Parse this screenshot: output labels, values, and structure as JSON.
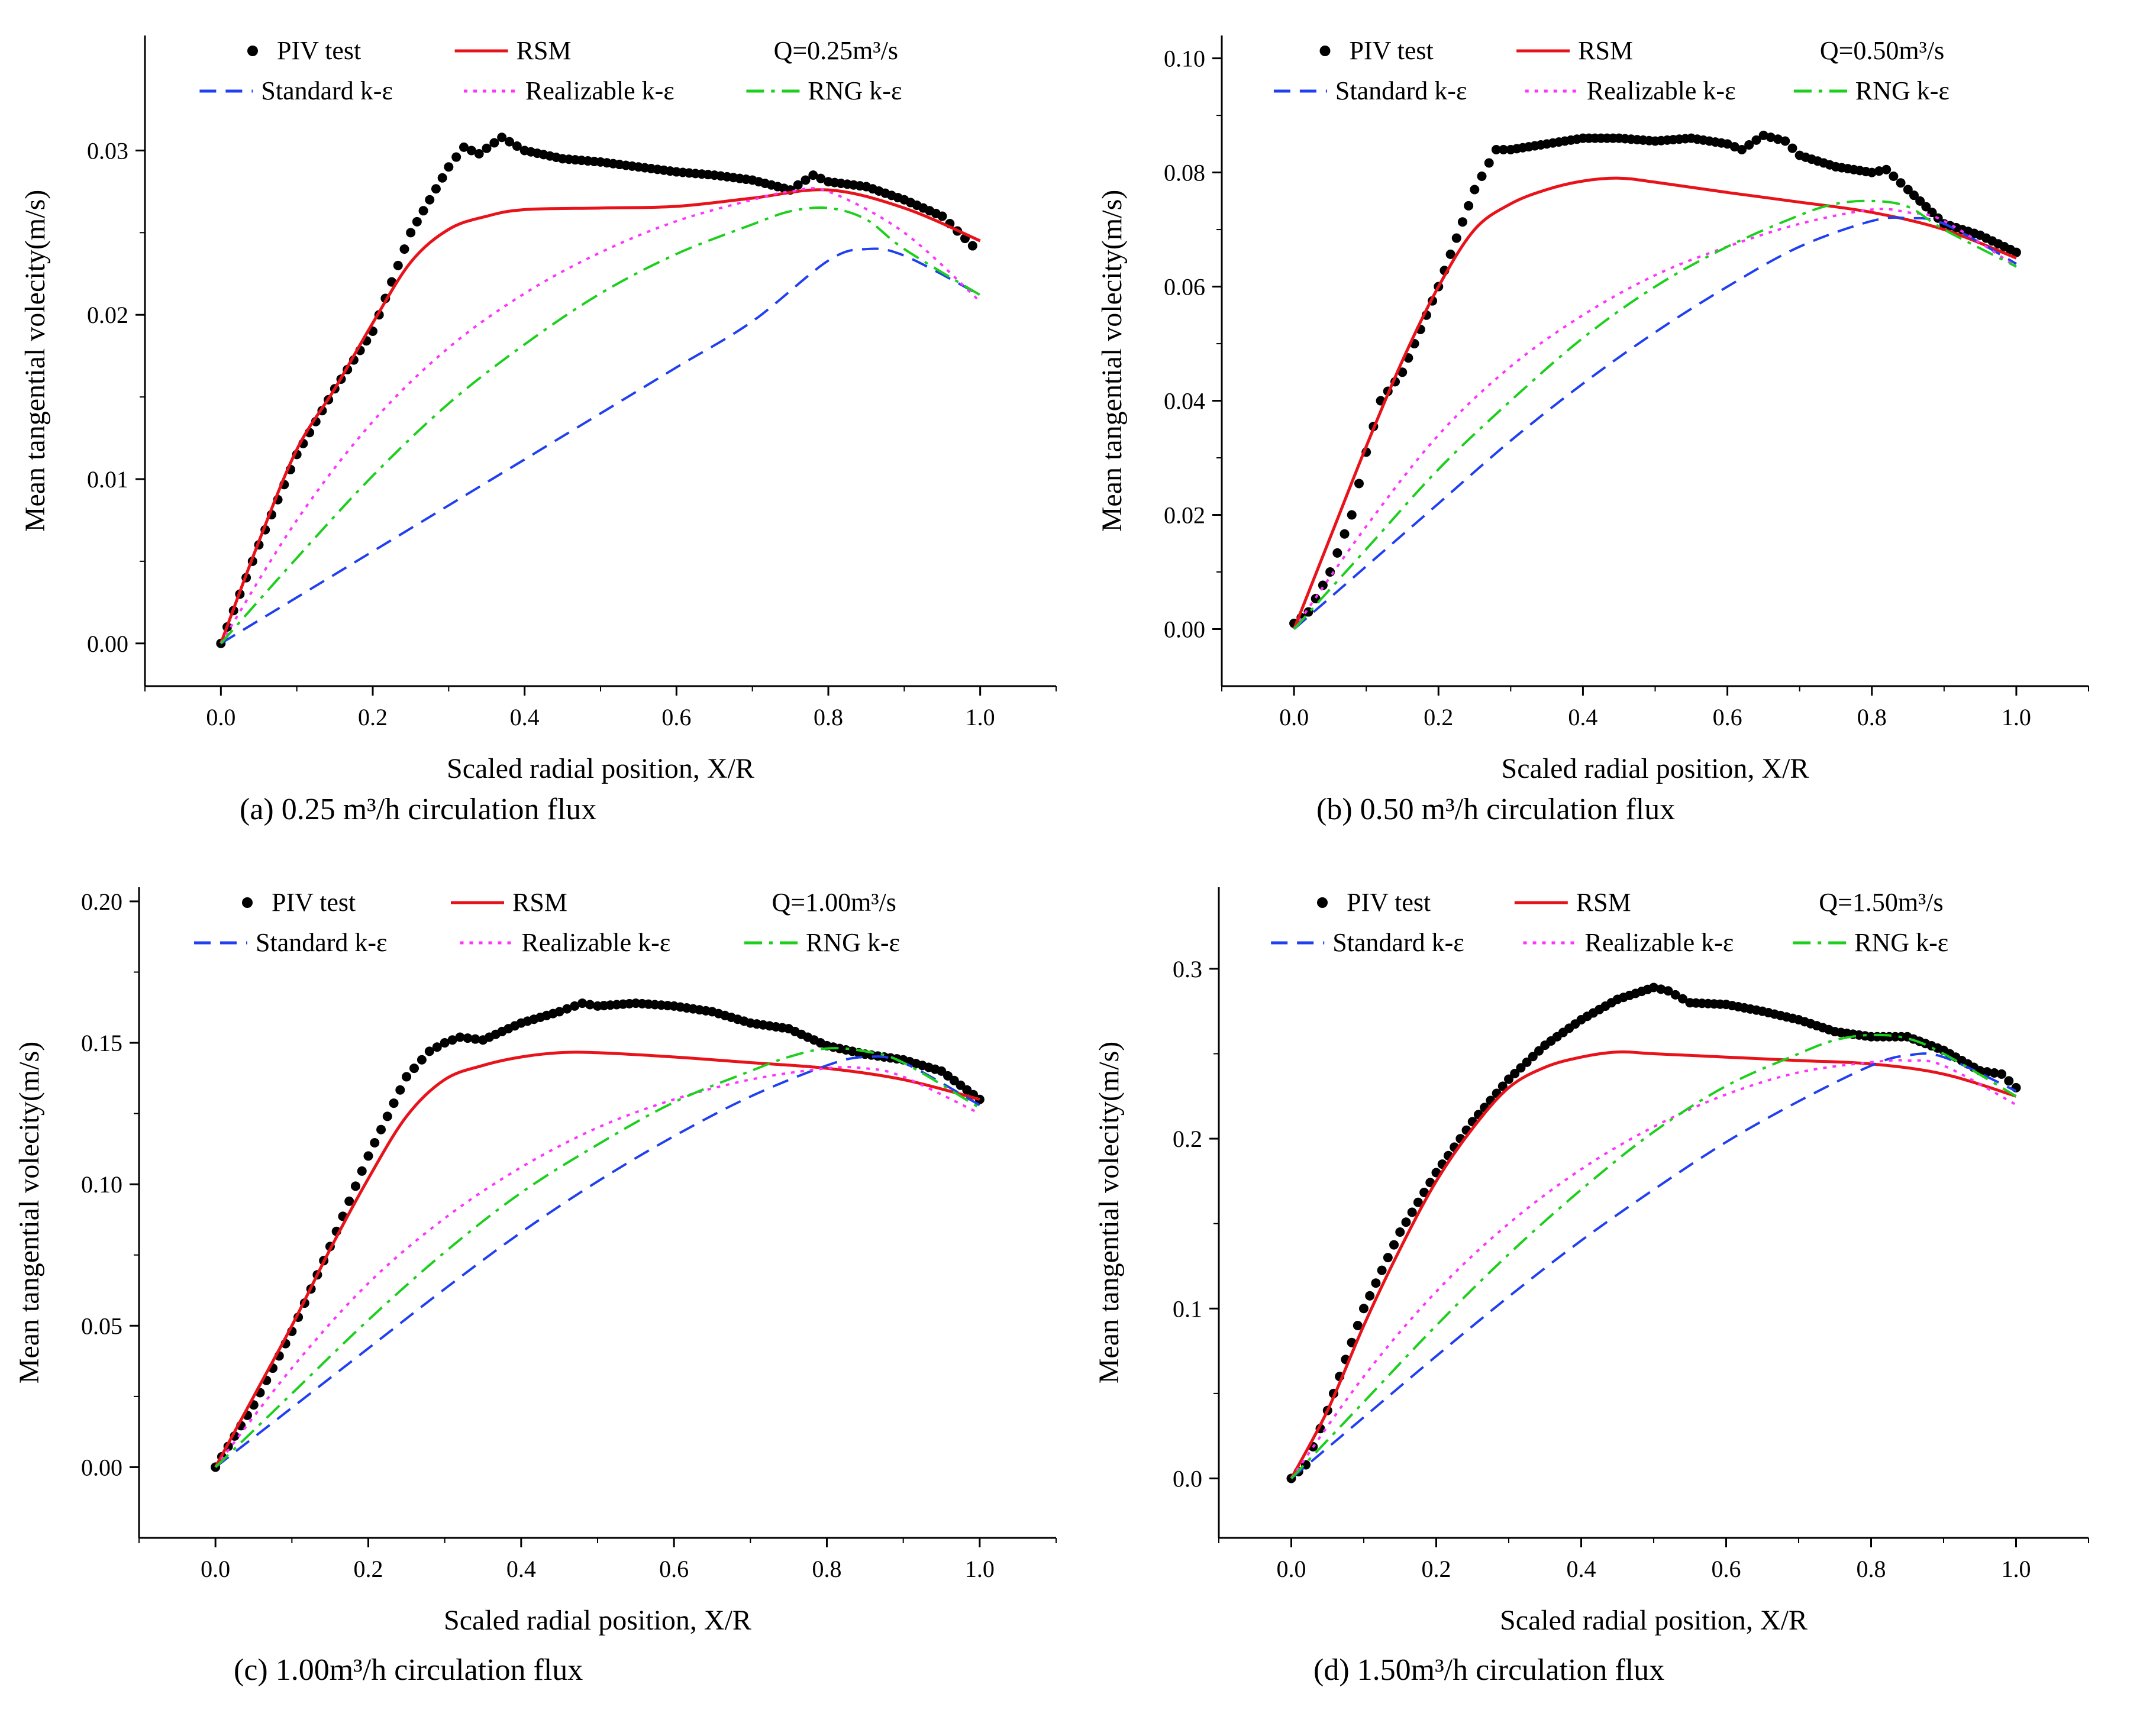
{
  "figure": {
    "ylabel": "Mean tangential volecity(m/s)",
    "xlabel": "Scaled radial position, X/R",
    "colors": {
      "piv": "#000000",
      "rsm": "#e8131a",
      "standard": "#1f3ff0",
      "realizable": "#ff33ff",
      "rng": "#1ccf1c"
    }
  },
  "chart_data": [
    {
      "id": "a",
      "type": "line",
      "caption": "(a) 0.25 m³/h circulation flux",
      "title": "Q=0.25m³/s",
      "xlabel": "Scaled radial position, X/R",
      "ylabel": "Mean tangential volecity(m/s)",
      "xlim": [
        -0.1,
        1.1
      ],
      "ylim": [
        -0.0026,
        0.037
      ],
      "xticks": [
        "0.0",
        "0.2",
        "0.4",
        "0.6",
        "0.8",
        "1.0"
      ],
      "yticks": [
        "0.00",
        "0.01",
        "0.02",
        "0.03"
      ],
      "series": [
        {
          "name": "PIV test",
          "style": "dots",
          "x": [
            0,
            0.05,
            0.1,
            0.15,
            0.2,
            0.25,
            0.3,
            0.32,
            0.34,
            0.37,
            0.4,
            0.45,
            0.5,
            0.55,
            0.6,
            0.65,
            0.7,
            0.75,
            0.78,
            0.8,
            0.85,
            0.9,
            0.95,
            0.99
          ],
          "y": [
            0,
            0.006,
            0.0115,
            0.0155,
            0.019,
            0.025,
            0.029,
            0.0302,
            0.0298,
            0.0308,
            0.03,
            0.0295,
            0.0293,
            0.029,
            0.0287,
            0.0285,
            0.0282,
            0.0276,
            0.0285,
            0.0281,
            0.0278,
            0.027,
            0.026,
            0.0242
          ]
        },
        {
          "name": "RSM",
          "style": "solid",
          "x": [
            0,
            0.05,
            0.1,
            0.15,
            0.2,
            0.25,
            0.3,
            0.35,
            0.4,
            0.5,
            0.6,
            0.7,
            0.8,
            0.9,
            1.0
          ],
          "y": [
            0,
            0.0062,
            0.0118,
            0.0155,
            0.0195,
            0.0232,
            0.0252,
            0.026,
            0.0264,
            0.0265,
            0.0266,
            0.0271,
            0.0276,
            0.0265,
            0.0245
          ]
        },
        {
          "name": "Standard k-ε",
          "style": "dash",
          "x": [
            0,
            0.1,
            0.2,
            0.3,
            0.4,
            0.5,
            0.6,
            0.7,
            0.8,
            0.85,
            0.9,
            1.0
          ],
          "y": [
            0,
            0.0028,
            0.0056,
            0.0084,
            0.0112,
            0.014,
            0.0168,
            0.0196,
            0.0233,
            0.024,
            0.0236,
            0.0212
          ]
        },
        {
          "name": "Realizable k-ε",
          "style": "dot",
          "x": [
            0,
            0.1,
            0.2,
            0.3,
            0.4,
            0.5,
            0.6,
            0.7,
            0.75,
            0.8,
            0.9,
            1.0
          ],
          "y": [
            0,
            0.0075,
            0.0135,
            0.018,
            0.0213,
            0.0238,
            0.0257,
            0.027,
            0.0275,
            0.0275,
            0.025,
            0.0208
          ]
        },
        {
          "name": "RNG k-ε",
          "style": "dashdot",
          "x": [
            0,
            0.1,
            0.2,
            0.3,
            0.4,
            0.5,
            0.6,
            0.7,
            0.75,
            0.8,
            0.85,
            0.9,
            1.0
          ],
          "y": [
            0,
            0.0052,
            0.0102,
            0.0146,
            0.0182,
            0.0213,
            0.0237,
            0.0255,
            0.0263,
            0.0265,
            0.0258,
            0.024,
            0.0212
          ]
        }
      ]
    },
    {
      "id": "b",
      "type": "line",
      "caption": "(b) 0.50 m³/h circulation flux",
      "title": "Q=0.50m³/s",
      "xlabel": "Scaled radial position, X/R",
      "ylabel": "Mean tangential volecity(m/s)",
      "xlim": [
        -0.1,
        1.1
      ],
      "ylim": [
        -0.01,
        0.104
      ],
      "xticks": [
        "0.0",
        "0.2",
        "0.4",
        "0.6",
        "0.8",
        "1.0"
      ],
      "yticks": [
        "0.00",
        "0.02",
        "0.04",
        "0.06",
        "0.08",
        "0.10"
      ],
      "series": [
        {
          "name": "PIV test",
          "style": "dots",
          "x": [
            0,
            0.02,
            0.05,
            0.08,
            0.1,
            0.12,
            0.15,
            0.2,
            0.25,
            0.28,
            0.3,
            0.35,
            0.4,
            0.45,
            0.5,
            0.55,
            0.6,
            0.62,
            0.65,
            0.68,
            0.7,
            0.75,
            0.8,
            0.82,
            0.85,
            0.9,
            0.95,
            1.0
          ],
          "y": [
            0.001,
            0.003,
            0.01,
            0.02,
            0.031,
            0.04,
            0.045,
            0.06,
            0.077,
            0.084,
            0.084,
            0.085,
            0.086,
            0.086,
            0.0855,
            0.086,
            0.085,
            0.084,
            0.0865,
            0.0855,
            0.083,
            0.081,
            0.08,
            0.0805,
            0.077,
            0.071,
            0.069,
            0.066
          ]
        },
        {
          "name": "RSM",
          "style": "solid",
          "x": [
            0,
            0.05,
            0.1,
            0.15,
            0.2,
            0.25,
            0.3,
            0.35,
            0.4,
            0.45,
            0.5,
            0.6,
            0.7,
            0.8,
            0.9,
            1.0
          ],
          "y": [
            0,
            0.016,
            0.032,
            0.047,
            0.06,
            0.07,
            0.0745,
            0.077,
            0.0785,
            0.079,
            0.0783,
            0.0765,
            0.0748,
            0.073,
            0.07,
            0.065
          ]
        },
        {
          "name": "Standard k-ε",
          "style": "dash",
          "x": [
            0,
            0.1,
            0.2,
            0.3,
            0.4,
            0.5,
            0.6,
            0.7,
            0.8,
            0.85,
            0.9,
            1.0
          ],
          "y": [
            0,
            0.011,
            0.022,
            0.033,
            0.043,
            0.052,
            0.06,
            0.067,
            0.0715,
            0.072,
            0.071,
            0.064
          ]
        },
        {
          "name": "Realizable k-ε",
          "style": "dot",
          "x": [
            0,
            0.1,
            0.2,
            0.3,
            0.4,
            0.5,
            0.6,
            0.7,
            0.8,
            0.85,
            0.9,
            1.0
          ],
          "y": [
            0,
            0.018,
            0.034,
            0.046,
            0.055,
            0.062,
            0.067,
            0.071,
            0.0735,
            0.073,
            0.0715,
            0.0635
          ]
        },
        {
          "name": "RNG k-ε",
          "style": "dashdot",
          "x": [
            0,
            0.1,
            0.2,
            0.3,
            0.4,
            0.5,
            0.6,
            0.7,
            0.75,
            0.8,
            0.85,
            0.9,
            1.0
          ],
          "y": [
            0,
            0.014,
            0.028,
            0.04,
            0.051,
            0.06,
            0.067,
            0.0725,
            0.0745,
            0.075,
            0.074,
            0.07,
            0.0635
          ]
        }
      ]
    },
    {
      "id": "c",
      "type": "line",
      "caption": "(c) 1.00m³/h circulation flux",
      "title": "Q=1.00m³/s",
      "xlabel": "Scaled radial position, X/R",
      "ylabel": "Mean tangential volecity(m/s)",
      "xlim": [
        -0.1,
        1.1
      ],
      "ylim": [
        -0.025,
        0.205
      ],
      "xticks": [
        "0.0",
        "0.2",
        "0.4",
        "0.6",
        "0.8",
        "1.0"
      ],
      "yticks": [
        "0.00",
        "0.05",
        "0.10",
        "0.15",
        "0.20"
      ],
      "series": [
        {
          "name": "PIV test",
          "style": "dots",
          "x": [
            0,
            0.05,
            0.1,
            0.15,
            0.2,
            0.25,
            0.28,
            0.3,
            0.32,
            0.35,
            0.4,
            0.45,
            0.48,
            0.5,
            0.55,
            0.6,
            0.65,
            0.7,
            0.75,
            0.8,
            0.85,
            0.9,
            0.95,
            1.0
          ],
          "y": [
            0,
            0.022,
            0.048,
            0.078,
            0.11,
            0.138,
            0.147,
            0.15,
            0.152,
            0.151,
            0.157,
            0.161,
            0.164,
            0.163,
            0.164,
            0.163,
            0.161,
            0.157,
            0.155,
            0.149,
            0.146,
            0.144,
            0.14,
            0.13
          ]
        },
        {
          "name": "RSM",
          "style": "solid",
          "x": [
            0,
            0.05,
            0.1,
            0.15,
            0.2,
            0.25,
            0.3,
            0.35,
            0.4,
            0.45,
            0.5,
            0.6,
            0.7,
            0.8,
            0.9,
            1.0
          ],
          "y": [
            0,
            0.025,
            0.05,
            0.077,
            0.102,
            0.124,
            0.137,
            0.142,
            0.145,
            0.1465,
            0.1465,
            0.145,
            0.143,
            0.141,
            0.137,
            0.13
          ]
        },
        {
          "name": "Standard k-ε",
          "style": "dash",
          "x": [
            0,
            0.1,
            0.2,
            0.3,
            0.4,
            0.5,
            0.6,
            0.7,
            0.8,
            0.85,
            0.9,
            1.0
          ],
          "y": [
            0,
            0.021,
            0.042,
            0.063,
            0.083,
            0.101,
            0.117,
            0.131,
            0.142,
            0.145,
            0.143,
            0.128
          ]
        },
        {
          "name": "Realizable k-ε",
          "style": "dot",
          "x": [
            0,
            0.1,
            0.2,
            0.3,
            0.4,
            0.5,
            0.6,
            0.7,
            0.8,
            0.85,
            0.9,
            1.0
          ],
          "y": [
            0,
            0.035,
            0.065,
            0.088,
            0.106,
            0.12,
            0.13,
            0.137,
            0.141,
            0.141,
            0.138,
            0.125
          ]
        },
        {
          "name": "RNG k-ε",
          "style": "dashdot",
          "x": [
            0,
            0.1,
            0.2,
            0.3,
            0.4,
            0.5,
            0.6,
            0.7,
            0.75,
            0.8,
            0.85,
            0.9,
            1.0
          ],
          "y": [
            0,
            0.026,
            0.052,
            0.076,
            0.097,
            0.114,
            0.129,
            0.14,
            0.145,
            0.148,
            0.147,
            0.143,
            0.127
          ]
        }
      ]
    },
    {
      "id": "d",
      "type": "line",
      "caption": "(d) 1.50m³/h circulation flux",
      "title": "Q=1.50m³/s",
      "xlabel": "Scaled radial position, X/R",
      "ylabel": "Mean tangential volecity(m/s)",
      "xlim": [
        -0.1,
        1.1
      ],
      "ylim": [
        -0.035,
        0.348
      ],
      "xticks": [
        "0.0",
        "0.2",
        "0.4",
        "0.6",
        "0.8",
        "1.0"
      ],
      "yticks": [
        "0.0",
        "0.1",
        "0.2",
        "0.3"
      ],
      "series": [
        {
          "name": "PIV test",
          "style": "dots",
          "x": [
            0,
            0.02,
            0.05,
            0.1,
            0.15,
            0.2,
            0.25,
            0.3,
            0.35,
            0.4,
            0.45,
            0.5,
            0.52,
            0.55,
            0.6,
            0.65,
            0.7,
            0.75,
            0.8,
            0.85,
            0.9,
            0.95,
            0.98,
            1.0
          ],
          "y": [
            0,
            0.008,
            0.04,
            0.1,
            0.145,
            0.18,
            0.21,
            0.235,
            0.255,
            0.27,
            0.282,
            0.289,
            0.287,
            0.28,
            0.279,
            0.275,
            0.27,
            0.263,
            0.26,
            0.26,
            0.252,
            0.24,
            0.238,
            0.23
          ]
        },
        {
          "name": "RSM",
          "style": "solid",
          "x": [
            0,
            0.05,
            0.1,
            0.15,
            0.2,
            0.25,
            0.3,
            0.35,
            0.4,
            0.45,
            0.5,
            0.6,
            0.7,
            0.8,
            0.9,
            1.0
          ],
          "y": [
            0,
            0.04,
            0.09,
            0.135,
            0.175,
            0.206,
            0.23,
            0.242,
            0.248,
            0.251,
            0.25,
            0.248,
            0.246,
            0.244,
            0.238,
            0.225
          ]
        },
        {
          "name": "Standard k-ε",
          "style": "dash",
          "x": [
            0,
            0.1,
            0.2,
            0.3,
            0.4,
            0.5,
            0.6,
            0.7,
            0.8,
            0.85,
            0.9,
            1.0
          ],
          "y": [
            0,
            0.036,
            0.072,
            0.107,
            0.14,
            0.17,
            0.198,
            0.222,
            0.243,
            0.249,
            0.248,
            0.228
          ]
        },
        {
          "name": "Realizable k-ε",
          "style": "dot",
          "x": [
            0,
            0.1,
            0.2,
            0.3,
            0.4,
            0.5,
            0.6,
            0.7,
            0.8,
            0.85,
            0.9,
            1.0
          ],
          "y": [
            0,
            0.06,
            0.11,
            0.15,
            0.182,
            0.207,
            0.226,
            0.239,
            0.245,
            0.246,
            0.243,
            0.22
          ]
        },
        {
          "name": "RNG k-ε",
          "style": "dashdot",
          "x": [
            0,
            0.1,
            0.2,
            0.3,
            0.4,
            0.5,
            0.6,
            0.7,
            0.75,
            0.8,
            0.85,
            0.9,
            1.0
          ],
          "y": [
            0,
            0.045,
            0.09,
            0.132,
            0.17,
            0.204,
            0.231,
            0.25,
            0.258,
            0.261,
            0.259,
            0.25,
            0.225
          ]
        }
      ]
    }
  ]
}
